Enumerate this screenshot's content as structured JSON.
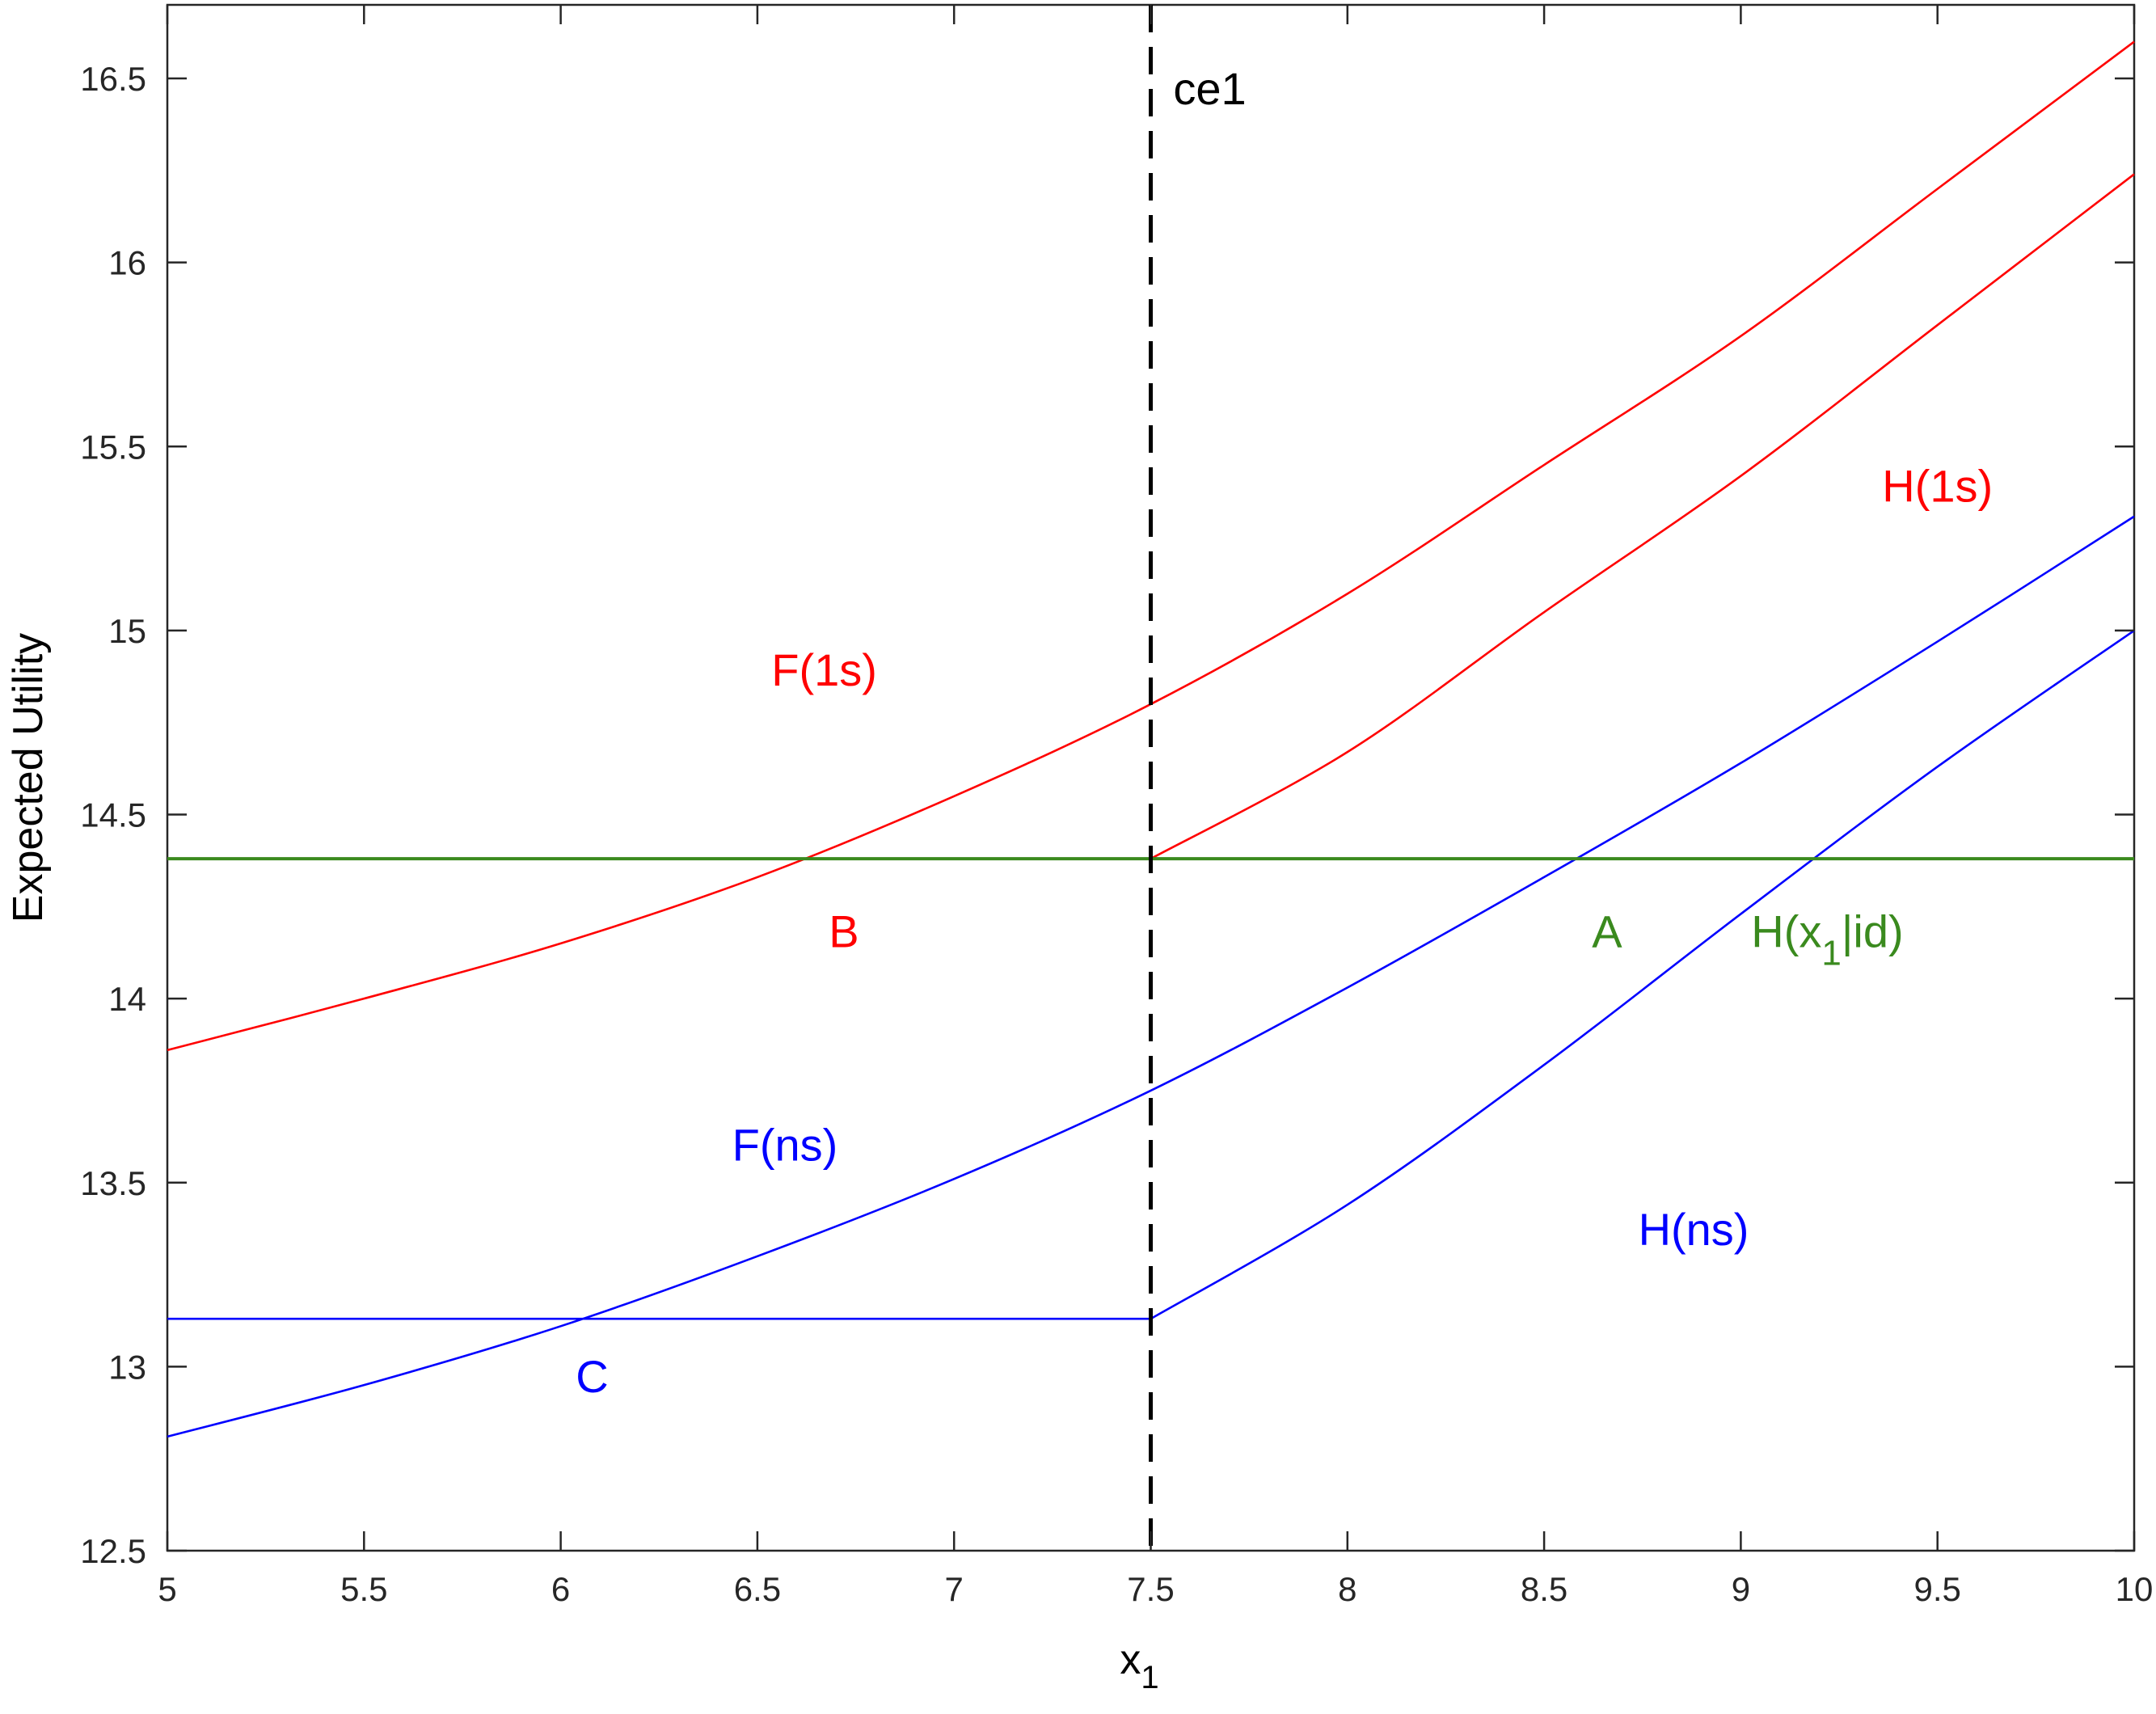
{
  "chart_data": {
    "type": "line",
    "title": "",
    "xlabel": "x",
    "xlabel_sub": "1",
    "ylabel": "Expected Utility",
    "xlim": [
      5,
      10
    ],
    "ylim": [
      12.5,
      16.7
    ],
    "x_ticks": [
      5,
      5.5,
      6,
      6.5,
      7,
      7.5,
      8,
      8.5,
      9,
      9.5,
      10
    ],
    "x_tick_labels": [
      "5",
      "5.5",
      "6",
      "6.5",
      "7",
      "7.5",
      "8",
      "8.5",
      "9",
      "9.5",
      "10"
    ],
    "y_ticks": [
      12.5,
      13,
      13.5,
      14,
      14.5,
      15,
      15.5,
      16,
      16.5
    ],
    "y_tick_labels": [
      "12.5",
      "13",
      "13.5",
      "14",
      "14.5",
      "15",
      "15.5",
      "16",
      "16.5"
    ],
    "grid": false,
    "legend": "none",
    "series": [
      {
        "key": "F1s",
        "color": "#ff0000",
        "x": [
          5,
          5.5,
          6,
          6.5,
          7,
          7.5,
          8,
          8.5,
          9,
          9.5,
          10
        ],
        "y": [
          13.86,
          14.0,
          14.15,
          14.33,
          14.55,
          14.8,
          15.1,
          15.45,
          15.8,
          16.2,
          16.6
        ]
      },
      {
        "key": "H1s",
        "color": "#ff0000",
        "x": [
          7.5,
          8,
          8.5,
          9,
          9.5,
          10
        ],
        "y": [
          14.38,
          14.67,
          15.05,
          15.42,
          15.83,
          16.24
        ]
      },
      {
        "key": "Fns",
        "color": "#0000ff",
        "x": [
          5,
          5.5,
          6,
          6.5,
          7,
          7.5,
          8,
          8.5,
          9,
          9.5,
          10
        ],
        "y": [
          12.81,
          12.95,
          13.11,
          13.3,
          13.51,
          13.75,
          14.03,
          14.33,
          14.64,
          14.97,
          15.31
        ]
      },
      {
        "key": "Hns_flat",
        "color": "#0000ff",
        "x": [
          5,
          7.5
        ],
        "y": [
          13.13,
          13.13
        ]
      },
      {
        "key": "Hns",
        "color": "#0000ff",
        "x": [
          7.5,
          8,
          8.5,
          9,
          9.5,
          10
        ],
        "y": [
          13.13,
          13.44,
          13.82,
          14.23,
          14.63,
          15.0
        ]
      },
      {
        "key": "Hx1id",
        "color": "#3a8a1e",
        "x": [
          5,
          10
        ],
        "y": [
          14.38,
          14.38
        ]
      }
    ],
    "vline": {
      "x": 7.5,
      "color": "#000000",
      "style": "dashed"
    },
    "annotations": [
      {
        "key": "ce1",
        "text": "ce1",
        "x": 7.65,
        "y": 16.43,
        "color": "#000000"
      },
      {
        "key": "F1s",
        "text": "F(1s)",
        "x": 6.67,
        "y": 14.85,
        "color": "#ff0000"
      },
      {
        "key": "H1s",
        "text": "H(1s)",
        "x": 9.5,
        "y": 15.35,
        "color": "#ff0000"
      },
      {
        "key": "B",
        "text": "B",
        "x": 6.72,
        "y": 14.14,
        "color": "#ff0000"
      },
      {
        "key": "A",
        "text": "A",
        "x": 8.66,
        "y": 14.14,
        "color": "#3a8a1e"
      },
      {
        "key": "Fns",
        "text": "F(ns)",
        "x": 6.57,
        "y": 13.56,
        "color": "#0000ff"
      },
      {
        "key": "Hns",
        "text": "H(ns)",
        "x": 8.88,
        "y": 13.33,
        "color": "#0000ff"
      },
      {
        "key": "C",
        "text": "C",
        "x": 6.08,
        "y": 12.93,
        "color": "#0000ff"
      },
      {
        "key": "Hx1id",
        "text": "H(x",
        "sub": "1",
        "tail": "|id)",
        "x": 9.22,
        "y": 14.14,
        "color": "#3a8a1e"
      }
    ]
  }
}
